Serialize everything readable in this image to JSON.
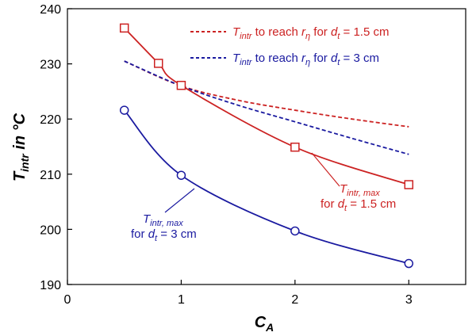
{
  "chart_data": {
    "type": "line",
    "xlim": [
      0,
      3.5
    ],
    "ylim": [
      190,
      240
    ],
    "x_ticks": [
      "0",
      "1",
      "2",
      "3"
    ],
    "y_ticks": [
      "190",
      "200",
      "210",
      "220",
      "230",
      "240"
    ],
    "xlabel": {
      "main": "C",
      "sub": "A"
    },
    "ylabel": {
      "main": "T",
      "sub": "intr",
      "rest": " in °C"
    },
    "grid": false,
    "legend_placement": "top-right",
    "series": [
      {
        "key": "dashed_red",
        "color": "#cc2222",
        "style": "dashed",
        "x": [
          0.5,
          1.0,
          1.5,
          2.0,
          2.5,
          3.0
        ],
        "y": [
          230.5,
          226.0,
          223.4,
          221.6,
          220.0,
          218.6
        ],
        "label": {
          "T": "T",
          "sub": "intr",
          "mid": " to reach ",
          "r": "r",
          "rsub": "η",
          "for": " for ",
          "d": "d",
          "dsub": "t",
          "val": " = 1.5 cm"
        }
      },
      {
        "key": "dashed_blue",
        "color": "#1a1aa0",
        "style": "dashed",
        "x": [
          0.5,
          1.0,
          1.5,
          2.0,
          2.5,
          3.0
        ],
        "y": [
          230.5,
          226.0,
          222.5,
          219.5,
          216.5,
          213.6
        ],
        "label": {
          "T": "T",
          "sub": "intr",
          "mid": " to reach ",
          "r": "r",
          "rsub": "η",
          "for": " for ",
          "d": "d",
          "dsub": "t",
          "val": " = 3 cm"
        }
      },
      {
        "key": "solid_red",
        "color": "#cc2222",
        "style": "solid",
        "marker": "square",
        "x": [
          0.5,
          0.8,
          1.0,
          2.0,
          3.0
        ],
        "y": [
          236.5,
          230.1,
          226.1,
          214.9,
          208.1
        ],
        "label": {
          "T": "T",
          "sub": "intr, max",
          "line2": "for ",
          "d": "d",
          "dsub": "t",
          "val": " = 1.5 cm"
        }
      },
      {
        "key": "solid_blue",
        "color": "#1a1aa0",
        "style": "solid",
        "marker": "circle",
        "x": [
          0.5,
          1.0,
          2.0,
          3.0
        ],
        "y": [
          221.6,
          209.8,
          199.7,
          193.8
        ],
        "label": {
          "T": "T",
          "sub": "intr, max",
          "line2": "for ",
          "d": "d",
          "dsub": "t",
          "val": " = 3 cm"
        }
      }
    ]
  }
}
